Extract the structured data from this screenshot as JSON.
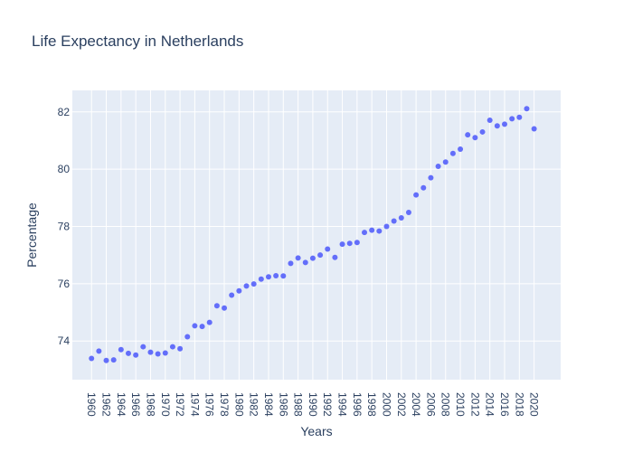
{
  "chart_data": {
    "type": "scatter",
    "title": "Life Expectancy in Netherlands",
    "xlabel": "Years",
    "ylabel": "Percentage",
    "x": [
      1960,
      1961,
      1962,
      1963,
      1964,
      1965,
      1966,
      1967,
      1968,
      1969,
      1970,
      1971,
      1972,
      1973,
      1974,
      1975,
      1976,
      1977,
      1978,
      1979,
      1980,
      1981,
      1982,
      1983,
      1984,
      1985,
      1986,
      1987,
      1988,
      1989,
      1990,
      1991,
      1992,
      1993,
      1994,
      1995,
      1996,
      1997,
      1998,
      1999,
      2000,
      2001,
      2002,
      2003,
      2004,
      2005,
      2006,
      2007,
      2008,
      2009,
      2010,
      2011,
      2012,
      2013,
      2014,
      2015,
      2016,
      2017,
      2018,
      2019,
      2020
    ],
    "y": [
      73.39,
      73.65,
      73.32,
      73.34,
      73.7,
      73.57,
      73.51,
      73.8,
      73.61,
      73.55,
      73.58,
      73.8,
      73.73,
      74.15,
      74.53,
      74.51,
      74.65,
      75.23,
      75.15,
      75.6,
      75.75,
      75.92,
      75.99,
      76.16,
      76.24,
      76.28,
      76.27,
      76.71,
      76.9,
      76.74,
      76.89,
      77.0,
      77.21,
      76.92,
      77.38,
      77.41,
      77.44,
      77.79,
      77.87,
      77.84,
      78.0,
      78.19,
      78.3,
      78.49,
      79.1,
      79.35,
      79.7,
      80.1,
      80.25,
      80.55,
      80.7,
      81.2,
      81.1,
      81.3,
      81.71,
      81.51,
      81.57,
      81.76,
      81.81,
      82.11,
      81.41
    ],
    "xticks": [
      "1960",
      "1962",
      "1964",
      "1966",
      "1968",
      "1970",
      "1972",
      "1974",
      "1976",
      "1978",
      "1980",
      "1982",
      "1984",
      "1986",
      "1988",
      "1990",
      "1992",
      "1994",
      "1996",
      "1998",
      "2000",
      "2002",
      "2004",
      "2006",
      "2008",
      "2010",
      "2012",
      "2014",
      "2016",
      "2018",
      "2020"
    ],
    "yticks": [
      "74",
      "76",
      "78",
      "80",
      "82"
    ],
    "xlim": [
      1957.4,
      2023.6
    ],
    "ylim": [
      72.65,
      82.75
    ],
    "grid": true,
    "colors": {
      "marker": "#636efa",
      "plot_background": "#e5ecf6",
      "gridline": "#ffffff",
      "text": "#2a3f5f"
    }
  }
}
